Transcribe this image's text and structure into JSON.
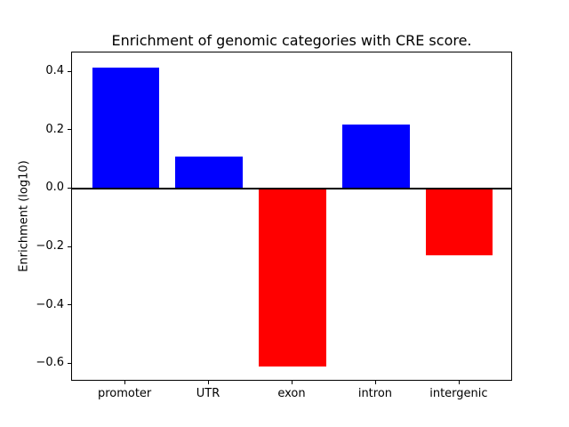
{
  "figure": {
    "background": "#ffffff"
  },
  "chart_data": {
    "type": "bar",
    "title": "Enrichment of genomic categories with CRE score.",
    "xlabel": "",
    "ylabel": "Enrichment (log10)",
    "categories": [
      "promoter",
      "UTR",
      "exon",
      "intron",
      "intergenic"
    ],
    "values": [
      0.415,
      0.11,
      -0.61,
      0.22,
      -0.23
    ],
    "bar_colors": [
      "#0000ff",
      "#0000ff",
      "#ff0000",
      "#0000ff",
      "#ff0000"
    ],
    "positive_color": "#0000ff",
    "negative_color": "#ff0000",
    "bar_width": 0.8,
    "ylim": [
      -0.661,
      0.466
    ],
    "y_ticks": [
      -0.6,
      -0.4,
      -0.2,
      0.0,
      0.2,
      0.4
    ],
    "y_tick_labels": [
      "−0.6",
      "−0.4",
      "−0.2",
      "0.0",
      "0.2",
      "0.4"
    ],
    "zero_line": true,
    "grid": false,
    "legend": false,
    "axis_color": "#000000"
  }
}
